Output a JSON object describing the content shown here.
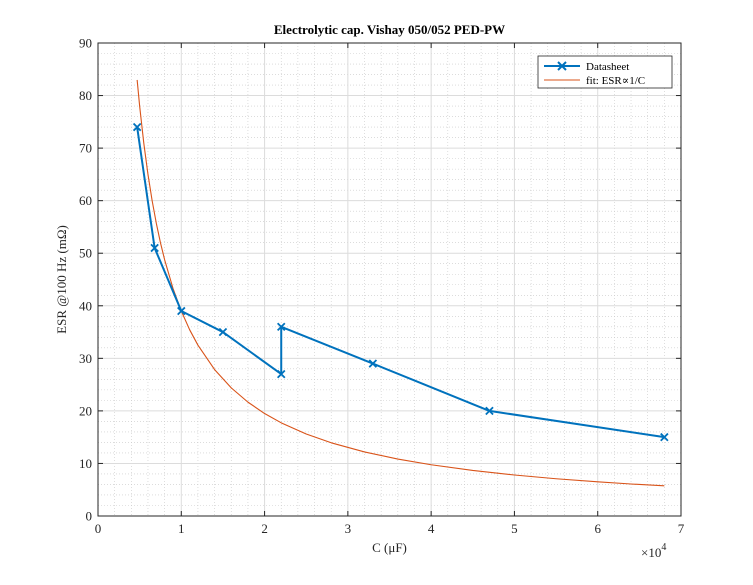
{
  "chart_data": {
    "type": "line",
    "title": "Electrolytic cap. Vishay 050/052 PED-PW",
    "xlabel": "C (μF)",
    "ylabel": "ESR @100 Hz (mΩ)",
    "x_exponent_label": "×10",
    "x_exponent": "4",
    "xlim": [
      0,
      70000
    ],
    "ylim": [
      0,
      90
    ],
    "xticks": [
      0,
      10000,
      20000,
      30000,
      40000,
      50000,
      60000,
      70000
    ],
    "xtick_labels": [
      "0",
      "1",
      "2",
      "3",
      "4",
      "5",
      "6",
      "7"
    ],
    "yticks": [
      0,
      10,
      20,
      30,
      40,
      50,
      60,
      70,
      80,
      90
    ],
    "ytick_labels": [
      "0",
      "10",
      "20",
      "30",
      "40",
      "50",
      "60",
      "70",
      "80",
      "90"
    ],
    "grid": true,
    "minor_grid": true,
    "legend_position": "top-right",
    "series": [
      {
        "name": "Datasheet",
        "color": "#0072BD",
        "marker": "x",
        "x": [
          4700,
          6800,
          10000,
          15000,
          22000,
          22000,
          33000,
          47000,
          68000
        ],
        "y": [
          74,
          51,
          39,
          35,
          27,
          36,
          29,
          20,
          15
        ]
      },
      {
        "name": "fit: ESR∝1/C",
        "color": "#D95319",
        "marker": "none",
        "x": [
          4700,
          5000,
          5500,
          6000,
          6500,
          7000,
          7500,
          8000,
          9000,
          10000,
          11000,
          12000,
          14000,
          16000,
          18000,
          20000,
          22000,
          25000,
          28000,
          32000,
          36000,
          40000,
          45000,
          50000,
          55000,
          60000,
          64000,
          68000
        ],
        "y": [
          82.98,
          78.0,
          70.91,
          65.0,
          60.0,
          55.71,
          52.0,
          48.75,
          43.33,
          39.0,
          35.45,
          32.5,
          27.86,
          24.38,
          21.67,
          19.5,
          17.73,
          15.6,
          13.93,
          12.19,
          10.83,
          9.75,
          8.67,
          7.8,
          7.09,
          6.5,
          6.09,
          5.74
        ]
      }
    ]
  }
}
